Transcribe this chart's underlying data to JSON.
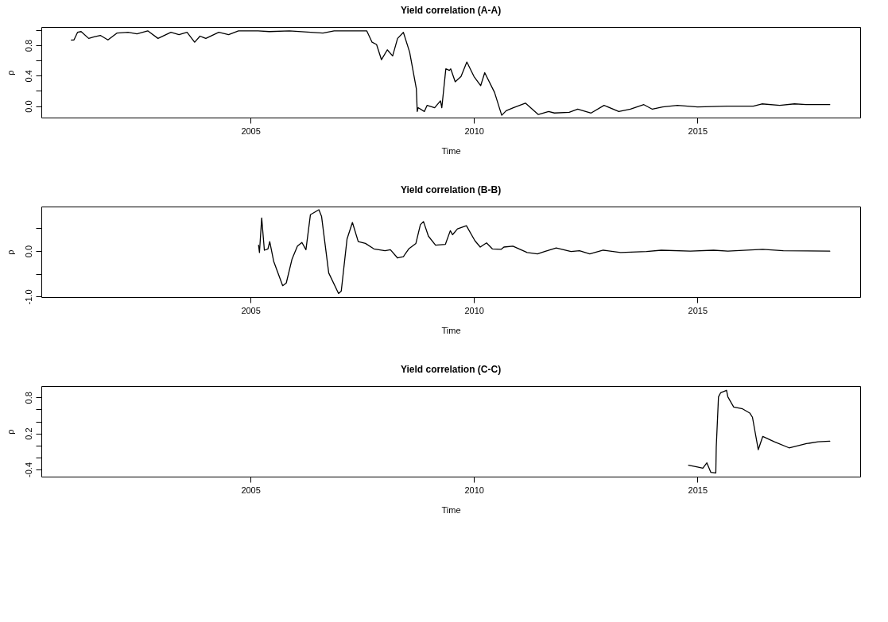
{
  "chart_data": [
    {
      "type": "line",
      "title": "Yield correlation (A-A)",
      "xlabel": "Time",
      "ylabel": "ρ",
      "color": "#000000",
      "x": [
        2000.99,
        2001.05,
        2001.13,
        2001.21,
        2001.38,
        2001.5,
        2001.64,
        2001.81,
        2002.01,
        2002.26,
        2002.46,
        2002.7,
        2002.93,
        2003.22,
        2003.4,
        2003.58,
        2003.75,
        2003.87,
        2004.0,
        2004.29,
        2004.51,
        2004.73,
        2005.17,
        2005.42,
        2005.87,
        2006.62,
        2006.87,
        2007.6,
        2007.72,
        2007.82,
        2007.93,
        2008.06,
        2008.18,
        2008.29,
        2008.42,
        2008.56,
        2008.71,
        2008.73,
        2008.75,
        2008.89,
        2008.95,
        2009.12,
        2009.25,
        2009.28,
        2009.37,
        2009.45,
        2009.48,
        2009.58,
        2009.71,
        2009.84,
        2010.0,
        2010.15,
        2010.24,
        2010.46,
        2010.62,
        2010.72,
        2010.88,
        2011.15,
        2011.44,
        2011.67,
        2011.8,
        2012.13,
        2012.32,
        2012.62,
        2012.91,
        2013.24,
        2013.5,
        2013.8,
        2013.99,
        2014.22,
        2014.55,
        2015.0,
        2015.66,
        2016.25,
        2016.44,
        2016.84,
        2017.17,
        2017.43,
        2017.96
      ],
      "values": [
        0.87,
        0.87,
        0.97,
        0.98,
        0.89,
        0.91,
        0.93,
        0.87,
        0.96,
        0.97,
        0.95,
        0.99,
        0.89,
        0.97,
        0.94,
        0.97,
        0.84,
        0.92,
        0.89,
        0.97,
        0.94,
        0.99,
        0.99,
        0.98,
        0.99,
        0.96,
        0.99,
        0.99,
        0.84,
        0.81,
        0.61,
        0.74,
        0.66,
        0.89,
        0.97,
        0.71,
        0.23,
        -0.07,
        -0.02,
        -0.07,
        0.01,
        -0.02,
        0.07,
        -0.02,
        0.49,
        0.47,
        0.49,
        0.32,
        0.39,
        0.58,
        0.39,
        0.27,
        0.44,
        0.18,
        -0.12,
        -0.06,
        -0.02,
        0.04,
        -0.11,
        -0.07,
        -0.09,
        -0.08,
        -0.04,
        -0.09,
        0.01,
        -0.07,
        -0.04,
        0.02,
        -0.04,
        -0.01,
        0.01,
        -0.01,
        0.0,
        0.0,
        0.03,
        0.01,
        0.03,
        0.02,
        0.02
      ],
      "xlim": [
        2000.32,
        2018.64
      ],
      "xticks": [
        2005,
        2010,
        2015
      ],
      "ylim": [
        -0.15,
        1.04
      ],
      "yticks": [
        {
          "value": 0,
          "label": "0.0"
        },
        {
          "value": 0.2,
          "label": null
        },
        0.4,
        {
          "value": 0.6,
          "label": null
        },
        0.8,
        {
          "value": 1,
          "label": null
        }
      ]
    },
    {
      "type": "line",
      "title": "Yield correlation (B-B)",
      "xlabel": "Time",
      "ylabel": "ρ",
      "color": "#000000",
      "x": [
        2005.18,
        2005.2,
        2005.25,
        2005.31,
        2005.39,
        2005.43,
        2005.52,
        2005.72,
        2005.8,
        2005.93,
        2006.05,
        2006.15,
        2006.24,
        2006.34,
        2006.53,
        2006.59,
        2006.75,
        2006.97,
        2007.03,
        2007.16,
        2007.28,
        2007.41,
        2007.57,
        2007.76,
        2008.01,
        2008.13,
        2008.29,
        2008.42,
        2008.54,
        2008.7,
        2008.8,
        2008.87,
        2008.98,
        2009.14,
        2009.36,
        2009.47,
        2009.52,
        2009.63,
        2009.83,
        2010.02,
        2010.14,
        2010.28,
        2010.41,
        2010.61,
        2010.67,
        2010.87,
        2011.19,
        2011.42,
        2011.58,
        2011.84,
        2012.17,
        2012.36,
        2012.59,
        2012.89,
        2013.28,
        2013.86,
        2014.19,
        2014.84,
        2015.36,
        2015.68,
        2016.46,
        2016.92,
        2017.96
      ],
      "values": [
        0.13,
        -0.03,
        0.73,
        0.02,
        0.05,
        0.21,
        -0.23,
        -0.76,
        -0.7,
        -0.17,
        0.11,
        0.19,
        0.03,
        0.8,
        0.91,
        0.76,
        -0.48,
        -0.93,
        -0.88,
        0.27,
        0.63,
        0.21,
        0.17,
        0.05,
        0.01,
        0.03,
        -0.15,
        -0.12,
        0.05,
        0.17,
        0.58,
        0.65,
        0.33,
        0.13,
        0.15,
        0.45,
        0.36,
        0.49,
        0.56,
        0.23,
        0.09,
        0.18,
        0.05,
        0.04,
        0.09,
        0.11,
        -0.03,
        -0.06,
        -0.01,
        0.07,
        -0.01,
        0.01,
        -0.06,
        0.02,
        -0.03,
        -0.01,
        0.02,
        0.0,
        0.02,
        0.0,
        0.04,
        0.01,
        0.0
      ],
      "xlim": [
        2000.32,
        2018.64
      ],
      "xticks": [
        2005,
        2010,
        2015
      ],
      "ylim": [
        -1.01,
        0.98
      ],
      "yticks": [
        {
          "value": -1,
          "label": "-1.0"
        },
        {
          "value": -0.5,
          "label": null
        },
        {
          "value": 0,
          "label": "0.0"
        },
        {
          "value": 0.5,
          "label": null
        }
      ]
    },
    {
      "type": "line",
      "title": "Yield correlation (C-C)",
      "xlabel": "Time",
      "ylabel": "ρ",
      "color": "#000000",
      "x": [
        2014.8,
        2015.0,
        2015.12,
        2015.21,
        2015.3,
        2015.41,
        2015.42,
        2015.47,
        2015.52,
        2015.65,
        2015.68,
        2015.81,
        2016.01,
        2016.17,
        2016.23,
        2016.36,
        2016.46,
        2016.72,
        2017.05,
        2017.44,
        2017.7,
        2017.96
      ],
      "values": [
        -0.33,
        -0.36,
        -0.38,
        -0.29,
        -0.45,
        -0.46,
        -0.03,
        0.81,
        0.88,
        0.92,
        0.81,
        0.64,
        0.61,
        0.54,
        0.47,
        -0.07,
        0.15,
        0.06,
        -0.04,
        0.03,
        0.06,
        0.07
      ],
      "xlim": [
        2000.32,
        2018.64
      ],
      "xticks": [
        2005,
        2010,
        2015
      ],
      "ylim": [
        -0.52,
        0.99
      ],
      "yticks": [
        -0.4,
        {
          "value": -0.2,
          "label": null
        },
        {
          "value": 0,
          "label": null
        },
        0.2,
        {
          "value": 0.4,
          "label": null
        },
        {
          "value": 0.6,
          "label": null
        },
        0.8
      ]
    }
  ]
}
